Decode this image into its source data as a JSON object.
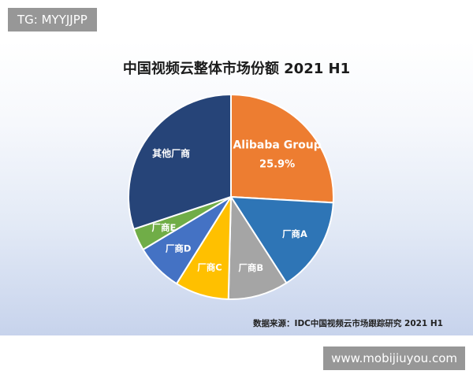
{
  "watermarks": {
    "top_left": "TG: MYYJJPP",
    "bottom_right": "www.mobijiuyou.com"
  },
  "source_note": "数据来源：IDC中国视频云市场跟踪研究 2021 H1",
  "chart_data": {
    "type": "pie",
    "title": "中国视频云整体市场份额 2021 H1",
    "legend": "none",
    "slices": [
      {
        "label": "Alibaba Group",
        "value": 25.9,
        "value_label": "25.9%",
        "color": "#ED7D31",
        "label_color": "#ffffff"
      },
      {
        "label": "厂商A",
        "value": 15.0,
        "color": "#2E75B6",
        "label_color": "#ffffff"
      },
      {
        "label": "厂商B",
        "value": 9.5,
        "color": "#A5A5A5",
        "label_color": "#ffffff"
      },
      {
        "label": "厂商C",
        "value": 8.5,
        "color": "#FFC000",
        "label_color": "#ffffff"
      },
      {
        "label": "厂商D",
        "value": 7.5,
        "color": "#4472C4",
        "label_color": "#ffffff"
      },
      {
        "label": "厂商E",
        "value": 3.5,
        "color": "#70AD47",
        "label_color": "#ffffff"
      },
      {
        "label": "其他厂商",
        "value": 30.1,
        "color": "#264478",
        "label_color": "#ffffff"
      }
    ]
  }
}
